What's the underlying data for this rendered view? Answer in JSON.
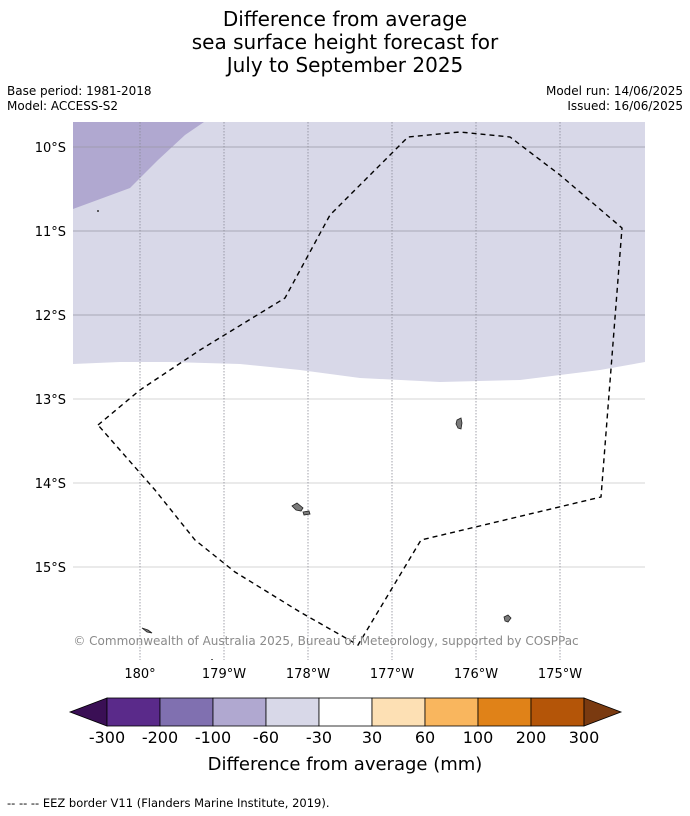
{
  "title": {
    "line1": "Difference from average",
    "line2": "sea surface height forecast for",
    "line3": "July to September 2025"
  },
  "meta": {
    "base_period": "Base period: 1981-2018",
    "model": "Model: ACCESS-S2",
    "model_run": "Model run: 14/06/2025",
    "issued": "Issued: 16/06/2025"
  },
  "map": {
    "lat_labels": [
      "10°S",
      "11°S",
      "12°S",
      "13°S",
      "14°S",
      "15°S"
    ],
    "lon_labels": [
      "180°",
      "179°W",
      "178°W",
      "177°W",
      "176°W",
      "175°W"
    ],
    "copyright": "© Commonwealth of Australia 2025, Bureau of Meteorology, supported by COSPPac",
    "fill_colors": {
      "minus100_minus60": "#b0a8d0",
      "minus60_minus30": "#d8d8e8",
      "ocean_neutral": "#ffffff"
    }
  },
  "colorbar": {
    "tick_labels": [
      "-300",
      "-200",
      "-100",
      "-60",
      "-30",
      "30",
      "60",
      "100",
      "200",
      "300"
    ],
    "label": "Difference from average (mm)",
    "colors": {
      "below_min": "#3a0f55",
      "bins": [
        "#5a2a8a",
        "#8070b0",
        "#b0a8d0",
        "#d8d8e8",
        "#ffffff",
        "#fde0b4",
        "#f9b65e",
        "#e08218",
        "#b45508"
      ],
      "above_max": "#7a3a10"
    }
  },
  "legend": {
    "eez": "--  --  -- EEZ border V11 (Flanders Marine Institute, 2019)."
  }
}
